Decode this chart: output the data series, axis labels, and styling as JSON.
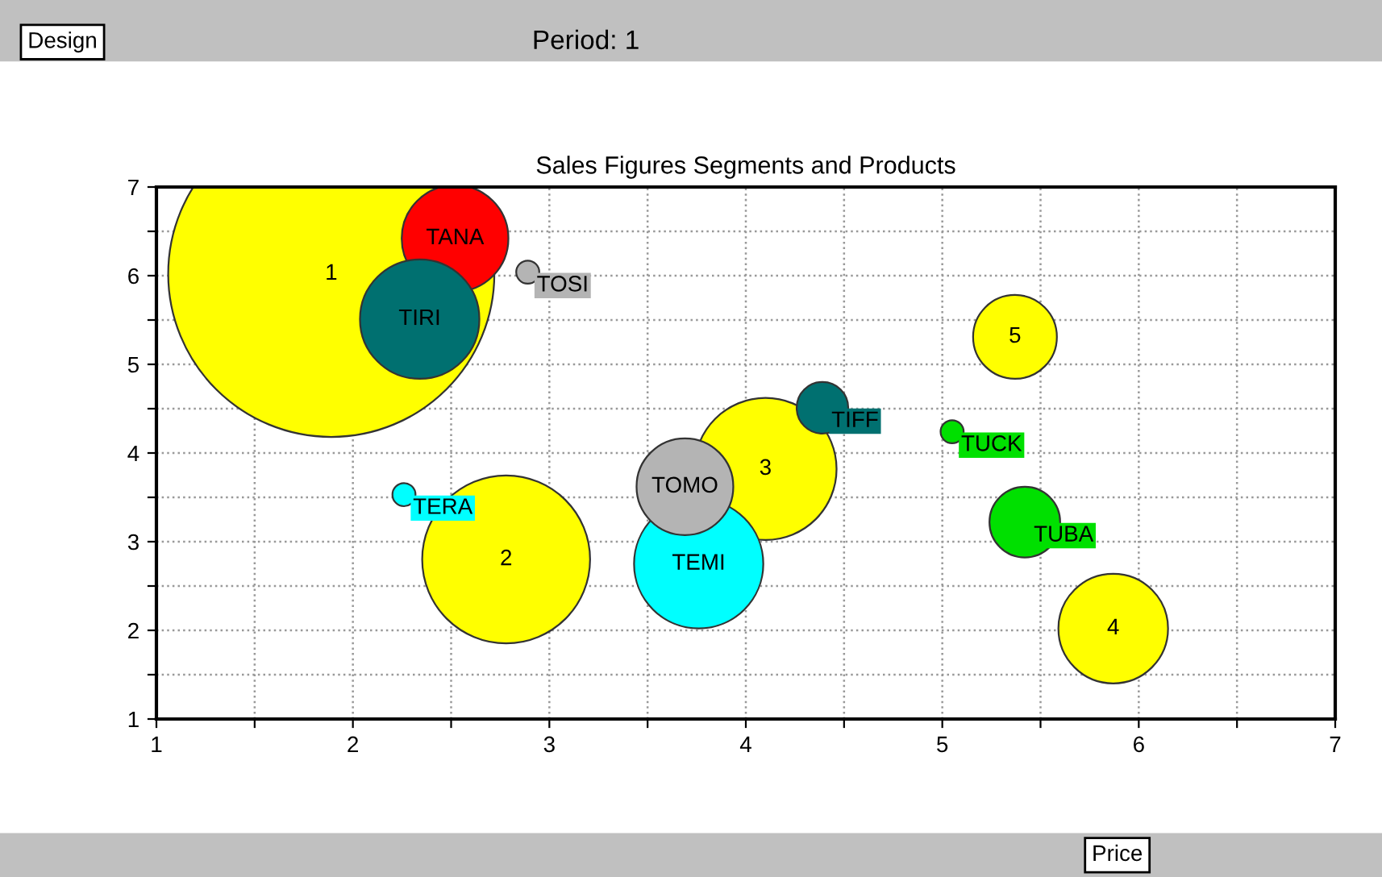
{
  "chart_data": {
    "type": "bubble",
    "title": "Sales Figures Segments and Products",
    "subtitle": "Period: 1",
    "annotations": [
      "Design",
      "Price"
    ],
    "xlim": [
      1,
      7
    ],
    "ylim": [
      1,
      7
    ],
    "xticks": [
      1,
      {
        "value": 1.5,
        "label": null
      },
      2,
      {
        "value": 2.5,
        "label": null
      },
      3,
      {
        "value": 3.5,
        "label": null
      },
      4,
      {
        "value": 4.5,
        "label": null
      },
      5,
      {
        "value": 5.5,
        "label": null
      },
      6,
      {
        "value": 6.5,
        "label": null
      },
      7
    ],
    "yticks": [
      1,
      {
        "value": 1.5,
        "label": null
      },
      2,
      {
        "value": 2.5,
        "label": null
      },
      3,
      {
        "value": 3.5,
        "label": null
      },
      4,
      {
        "value": 4.5,
        "label": null
      },
      5,
      {
        "value": 5.5,
        "label": null
      },
      6,
      {
        "value": 6.5,
        "label": null
      },
      7
    ],
    "grid": true,
    "line_style": "dotted",
    "series": [
      {
        "name": "1",
        "color": "#ffff00",
        "x": [
          1.89
        ],
        "values": [
          6.02
        ],
        "sizes": [
          1
        ]
      },
      {
        "name": "2",
        "color": "#ffff00",
        "x": [
          2.78
        ],
        "values": [
          2.8
        ],
        "sizes": [
          0.265
        ]
      },
      {
        "name": "3",
        "color": "#ffff00",
        "x": [
          4.1
        ],
        "values": [
          3.82
        ],
        "sizes": [
          0.19
        ]
      },
      {
        "name": "4",
        "color": "#ffff00",
        "x": [
          5.87
        ],
        "values": [
          2.02
        ],
        "sizes": [
          0.113
        ]
      },
      {
        "name": "5",
        "color": "#ffff00",
        "x": [
          5.37
        ],
        "values": [
          5.31
        ],
        "sizes": [
          0.066
        ]
      },
      {
        "name": "TANA",
        "color": "#ff0000",
        "x": [
          2.52
        ],
        "values": [
          6.42
        ],
        "sizes": [
          0.107
        ]
      },
      {
        "name": "TIRI",
        "color": "#007070",
        "x": [
          2.34
        ],
        "values": [
          5.51
        ],
        "sizes": [
          0.134
        ]
      },
      {
        "name": "TOSI",
        "color": "#b4b4b4",
        "x": [
          2.89
        ],
        "values": [
          6.04
        ],
        "sizes": [
          0.005
        ]
      },
      {
        "name": "TERA",
        "color": "#00ffff",
        "x": [
          2.26
        ],
        "values": [
          3.53
        ],
        "sizes": [
          0.005
        ]
      },
      {
        "name": "TEMI",
        "color": "#00ffff",
        "x": [
          3.76
        ],
        "values": [
          2.75
        ],
        "sizes": [
          0.157
        ]
      },
      {
        "name": "TOMO",
        "color": "#b4b4b4",
        "x": [
          3.69
        ],
        "values": [
          3.62
        ],
        "sizes": [
          0.088
        ]
      },
      {
        "name": "TIFF",
        "color": "#007070",
        "x": [
          4.39
        ],
        "values": [
          4.51
        ],
        "sizes": [
          0.025
        ]
      },
      {
        "name": "TUCK",
        "color": "#00e000",
        "x": [
          5.05
        ],
        "values": [
          4.24
        ],
        "sizes": [
          0.005
        ]
      },
      {
        "name": "TUBA",
        "color": "#00e000",
        "x": [
          5.42
        ],
        "values": [
          3.22
        ],
        "sizes": [
          0.047
        ]
      }
    ]
  }
}
